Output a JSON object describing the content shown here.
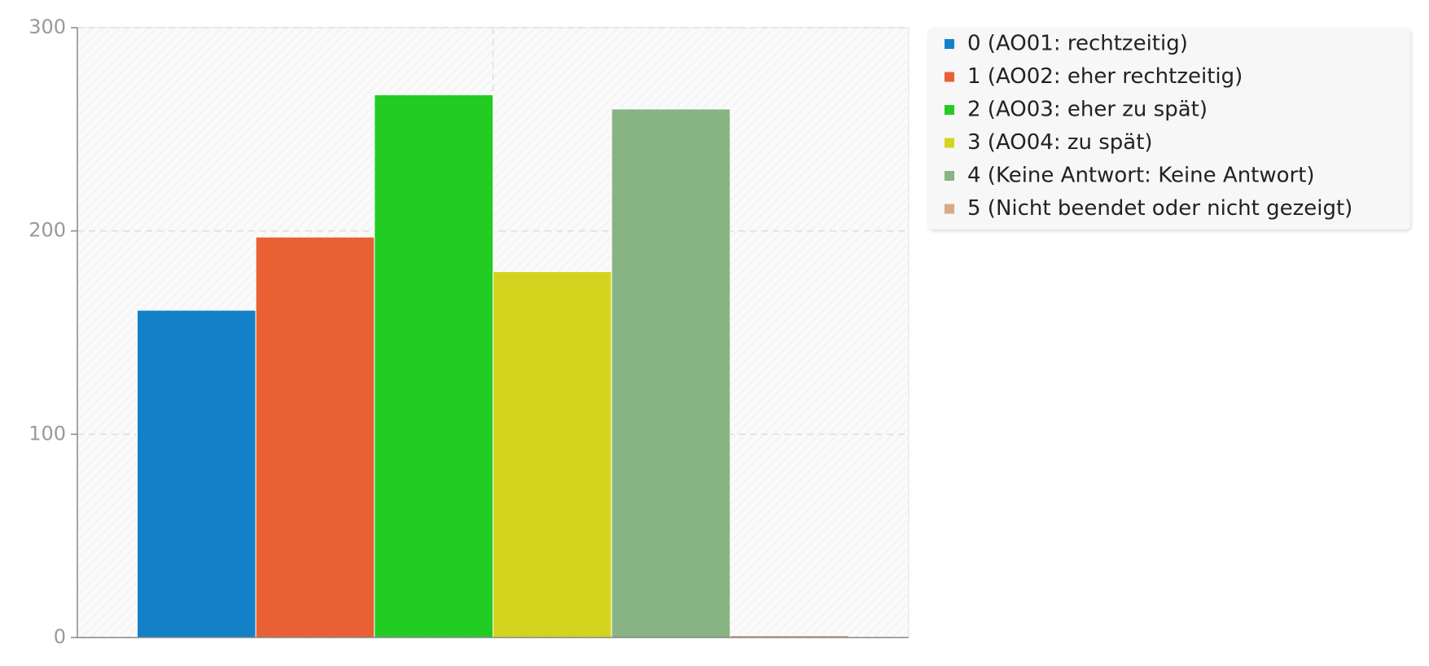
{
  "chart_data": {
    "type": "bar",
    "categories": [
      null
    ],
    "series": [
      {
        "name": "0 (AO01: rechtzeitig)",
        "color": "#1480c8",
        "values": [
          161
        ]
      },
      {
        "name": "1 (AO02: eher rechtzeitig)",
        "color": "#e86034",
        "values": [
          197
        ]
      },
      {
        "name": "2 (AO03: eher zu spät)",
        "color": "#22cc22",
        "values": [
          267
        ]
      },
      {
        "name": "3 (AO04: zu spät)",
        "color": "#d4d41e",
        "values": [
          180
        ]
      },
      {
        "name": "4 (Keine Antwort: Keine Antwort)",
        "color": "#88b383",
        "values": [
          260
        ]
      },
      {
        "name": "5 (Nicht beendet oder nicht gezeigt)",
        "color": "#d6ab85",
        "values": [
          1
        ]
      }
    ],
    "ylim": [
      0,
      300
    ],
    "yticks": [
      0,
      100,
      200,
      300
    ],
    "grid": true,
    "legend": "right"
  }
}
